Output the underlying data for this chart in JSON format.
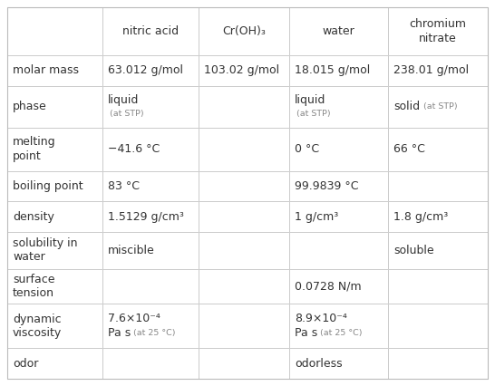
{
  "col_headers": [
    "",
    "nitric acid",
    "Cr(OH)₃",
    "water",
    "chromium\nnitrate"
  ],
  "rows": [
    {
      "label": "molar mass",
      "cells": [
        "63.012 g/mol",
        "103.02 g/mol",
        "18.015 g/mol",
        "238.01 g/mol"
      ]
    },
    {
      "label": "phase",
      "cells": [
        "liquid|(at STP)",
        "",
        "liquid|(at STP)",
        "solid|(at STP)"
      ]
    },
    {
      "label": "melting\npoint",
      "cells": [
        "−41.6 °C",
        "",
        "0 °C",
        "66 °C"
      ]
    },
    {
      "label": "boiling point",
      "cells": [
        "83 °C",
        "",
        "99.9839 °C",
        ""
      ]
    },
    {
      "label": "density",
      "cells": [
        "1.5129 g/cm³",
        "",
        "1 g/cm³",
        "1.8 g/cm³"
      ]
    },
    {
      "label": "solubility in\nwater",
      "cells": [
        "miscible",
        "",
        "",
        "soluble"
      ]
    },
    {
      "label": "surface\ntension",
      "cells": [
        "",
        "",
        "0.0728 N/m",
        ""
      ]
    },
    {
      "label": "dynamic\nviscosity",
      "cells": [
        "visc|7.6×10⁻⁴|Pa s|(at 25 °C)",
        "",
        "visc|8.9×10⁻⁴|Pa s|(at 25 °C)",
        ""
      ]
    },
    {
      "label": "odor",
      "cells": [
        "",
        "",
        "odorless",
        ""
      ]
    }
  ],
  "line_color": "#cccccc",
  "text_color": "#333333",
  "small_text_color": "#888888",
  "font_size": 9.0,
  "small_font_size": 6.8,
  "fig_width": 5.46,
  "fig_height": 4.26,
  "dpi": 100
}
